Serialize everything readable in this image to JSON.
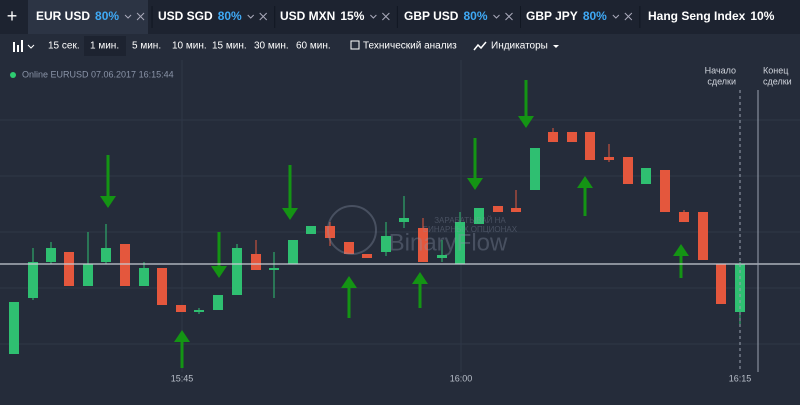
{
  "tabs": [
    {
      "name": "EUR USD",
      "payout": "80%"
    },
    {
      "name": "USD SGD",
      "payout": "80%"
    },
    {
      "name": "USD MXN",
      "payout": "15%"
    },
    {
      "name": "GBP USD",
      "payout": "80%"
    },
    {
      "name": "GBP JPY",
      "payout": "80%"
    },
    {
      "name": "Hang Seng Index",
      "payout": "10%"
    }
  ],
  "toolbar": {
    "timeframes": [
      "15 сек.",
      "1 мин.",
      "5 мин.",
      "10 мин.",
      "15 мин.",
      "30 мин.",
      "60 мин."
    ],
    "technical_analysis": "Технический анализ",
    "indicators": "Индикаторы"
  },
  "status": "Online EURUSD 07.06.2017 16:15:44",
  "markers": {
    "start": [
      "Начало",
      "сделки"
    ],
    "end": [
      "Конец",
      "сделки"
    ]
  },
  "time_labels": [
    "15:45",
    "16:00",
    "16:15"
  ],
  "watermark": {
    "tagline": [
      "ЗАРАБАТЫВАЙ НА",
      "БИНАРНЫХ ОПЦИОНАХ"
    ],
    "brand": "BinaryFlow"
  }
}
